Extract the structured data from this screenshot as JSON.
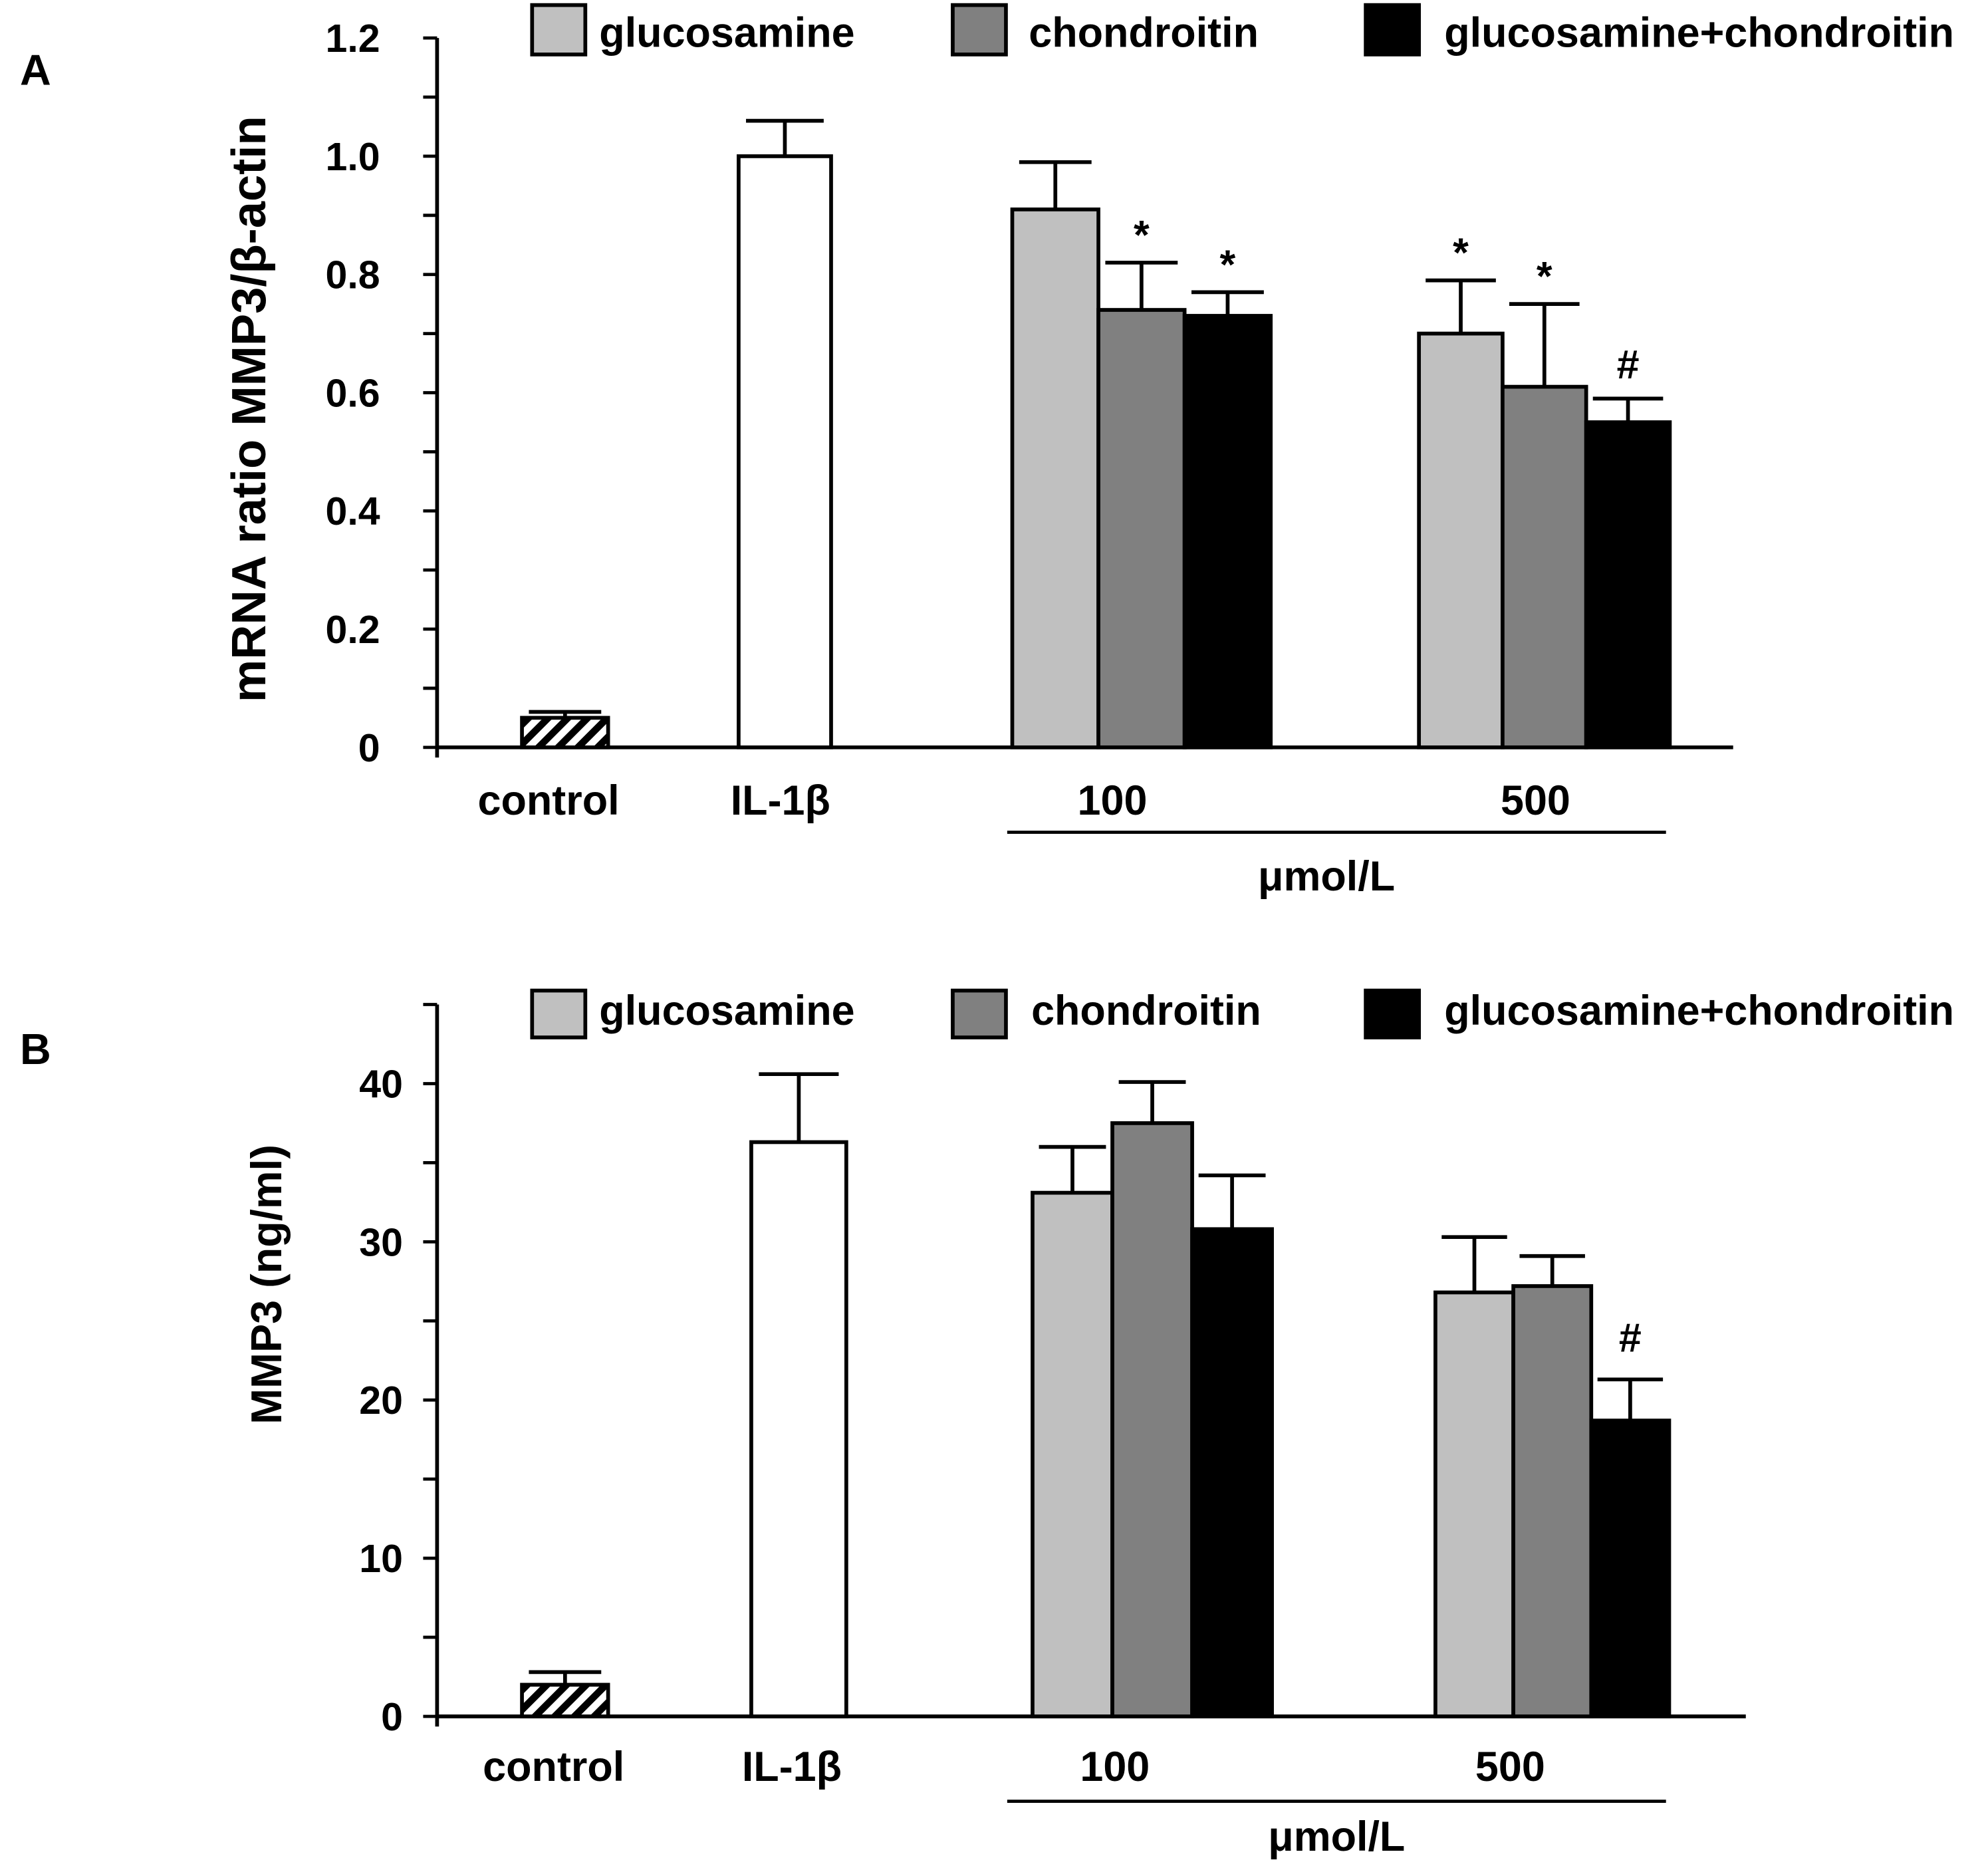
{
  "chart_data": [
    {
      "panel_label": "A",
      "type": "bar",
      "title": "",
      "ylabel": "mRNA ratio MMP3/β-actin",
      "xlabel": "μmol/L",
      "ylim": [
        0,
        1.2
      ],
      "minor_tick_step": 0.1,
      "yticks": [
        {
          "value": 0,
          "label": "0"
        },
        {
          "value": 0.2,
          "label": "0.2"
        },
        {
          "value": 0.4,
          "label": "0.4"
        },
        {
          "value": 0.6,
          "label": "0.6"
        },
        {
          "value": 0.8,
          "label": "0.8"
        },
        {
          "value": 1.0,
          "label": "1.0"
        },
        {
          "value": 1.2,
          "label": "1.2"
        }
      ],
      "categories": [
        "control",
        "IL-1β",
        "100",
        "500"
      ],
      "single_bars": [
        {
          "category_index": 0,
          "value": 0.05,
          "error": 0.01,
          "color": "#ffffff",
          "hatched": true
        },
        {
          "category_index": 1,
          "value": 1.0,
          "error": 0.06,
          "color": "#ffffff",
          "hatched": false
        }
      ],
      "series": [
        {
          "name": "glucosamine",
          "color": "#c0c0c0",
          "values": [
            null,
            null,
            0.91,
            0.7
          ],
          "errors": [
            null,
            null,
            0.08,
            0.09
          ],
          "annotations": [
            "",
            "",
            "",
            "*"
          ]
        },
        {
          "name": "chondroitin",
          "color": "#808080",
          "values": [
            null,
            null,
            0.74,
            0.61
          ],
          "errors": [
            null,
            null,
            0.08,
            0.14
          ],
          "annotations": [
            "",
            "",
            "*",
            "*"
          ]
        },
        {
          "name": "glucosamine+chondroitin",
          "color": "#000000",
          "values": [
            null,
            null,
            0.73,
            0.55
          ],
          "errors": [
            null,
            null,
            0.04,
            0.04
          ],
          "annotations": [
            "",
            "",
            "*",
            "#"
          ]
        }
      ]
    },
    {
      "panel_label": "B",
      "type": "bar",
      "title": "",
      "ylabel": "MMP3 (ng/ml)",
      "xlabel": "μmol/L",
      "ylim": [
        0,
        45
      ],
      "minor_tick_step": 5,
      "yticks": [
        {
          "value": 0,
          "label": "0"
        },
        {
          "value": 10,
          "label": "10"
        },
        {
          "value": 20,
          "label": "20"
        },
        {
          "value": 30,
          "label": "30"
        },
        {
          "value": 40,
          "label": "40"
        }
      ],
      "categories": [
        "control",
        "IL-1β",
        "100",
        "500"
      ],
      "single_bars": [
        {
          "category_index": 0,
          "value": 2.0,
          "error": 0.8,
          "color": "#ffffff",
          "hatched": true
        },
        {
          "category_index": 1,
          "value": 36.3,
          "error": 4.3,
          "color": "#ffffff",
          "hatched": false
        }
      ],
      "series": [
        {
          "name": "glucosamine",
          "color": "#c0c0c0",
          "values": [
            null,
            null,
            33.1,
            26.8
          ],
          "errors": [
            null,
            null,
            2.9,
            3.5
          ],
          "annotations": [
            "",
            "",
            "",
            ""
          ]
        },
        {
          "name": "chondroitin",
          "color": "#808080",
          "values": [
            null,
            null,
            37.5,
            27.2
          ],
          "errors": [
            null,
            null,
            2.6,
            1.9
          ],
          "annotations": [
            "",
            "",
            "",
            ""
          ]
        },
        {
          "name": "glucosamine+chondroitin",
          "color": "#000000",
          "values": [
            null,
            null,
            30.8,
            18.7
          ],
          "errors": [
            null,
            null,
            3.4,
            2.6
          ],
          "annotations": [
            "",
            "",
            "",
            "#"
          ]
        }
      ]
    }
  ]
}
